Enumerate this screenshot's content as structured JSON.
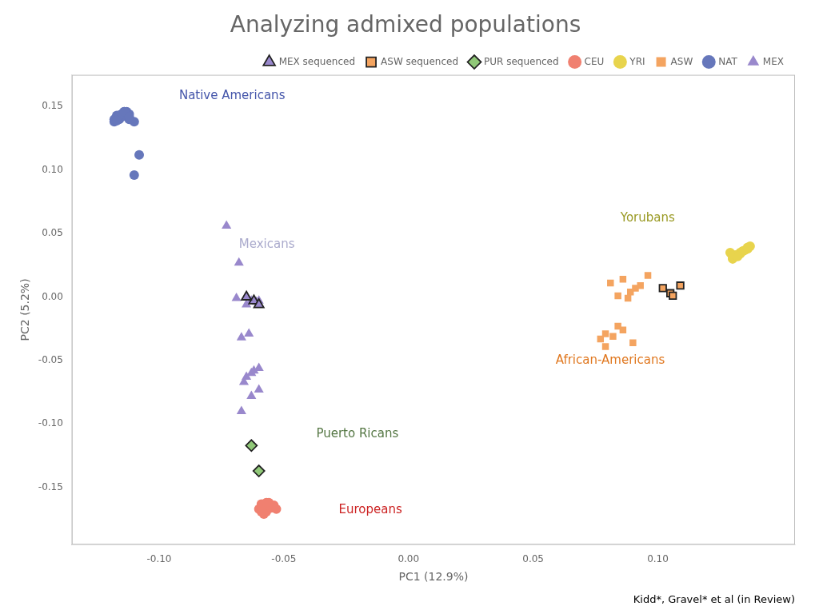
{
  "chart_data": {
    "type": "scatter",
    "title": "Analyzing admixed populations",
    "subtitle": "Kidd*, Gravel* et al (in Review)",
    "xlabel": "PC1 (12.9%)",
    "ylabel": "PC2 (5.2%)",
    "xlim": [
      -0.135,
      0.155
    ],
    "ylim": [
      -0.195,
      0.175
    ],
    "xticks": [
      {
        "value": -0.1,
        "label": "-0.10"
      },
      -0.05,
      {
        "value": 0,
        "label": "0.00"
      },
      0.05,
      {
        "value": 0.1,
        "label": "0.10"
      }
    ],
    "yticks": [
      -0.15,
      {
        "value": -0.1,
        "label": "-0.10"
      },
      -0.05,
      {
        "value": 0,
        "label": "0.00"
      },
      0.05,
      {
        "value": 0.1,
        "label": "0.10"
      },
      0.15
    ],
    "grid": false,
    "legend": "top",
    "series": [
      {
        "name": "CEU",
        "color": "#F08070",
        "marker": "circle",
        "x": [
          -0.057,
          -0.059,
          -0.055,
          -0.058,
          -0.056,
          -0.06,
          -0.054,
          -0.057,
          -0.059,
          -0.055,
          -0.058,
          -0.056,
          -0.053,
          -0.057,
          -0.059
        ],
        "values": [
          -0.163,
          -0.168,
          -0.165,
          -0.17,
          -0.162,
          -0.167,
          -0.164,
          -0.169,
          -0.163,
          -0.166,
          -0.171,
          -0.164,
          -0.167,
          -0.162,
          -0.169
        ]
      },
      {
        "name": "MEX sequenced",
        "color": "#9988CC",
        "marker": "triangle_outlined",
        "x": [
          -0.062,
          -0.065,
          -0.06
        ],
        "values": [
          -0.003,
          0.0,
          -0.006
        ]
      },
      {
        "name": "YRI",
        "color": "#E8D44D",
        "marker": "circle",
        "x": [
          0.132,
          0.136,
          0.13,
          0.134,
          0.133,
          0.137,
          0.131,
          0.135,
          0.133,
          0.13,
          0.134,
          0.131,
          0.136,
          0.132,
          0.129
        ],
        "values": [
          0.033,
          0.038,
          0.03,
          0.036,
          0.034,
          0.04,
          0.032,
          0.037,
          0.035,
          0.031,
          0.036,
          0.033,
          0.039,
          0.032,
          0.035
        ]
      },
      {
        "name": "ASW",
        "color": "#F4A460",
        "marker": "square",
        "x": [
          0.077,
          0.082,
          0.086,
          0.089,
          0.093,
          0.079,
          0.084,
          0.088,
          0.091,
          0.081,
          0.086,
          0.096,
          0.09,
          0.084,
          0.079
        ],
        "values": [
          -0.033,
          -0.031,
          -0.026,
          0.004,
          0.009,
          -0.029,
          -0.023,
          -0.001,
          0.007,
          0.011,
          0.014,
          0.017,
          -0.036,
          0.001,
          -0.039
        ]
      },
      {
        "name": "NAT",
        "color": "#6677BB",
        "marker": "circle",
        "x": [
          -0.117,
          -0.113,
          -0.116,
          -0.112,
          -0.115,
          -0.118,
          -0.114,
          -0.116,
          -0.113,
          -0.117,
          -0.115,
          -0.112,
          -0.116,
          -0.114,
          -0.118,
          -0.113,
          -0.11,
          -0.115,
          -0.112,
          -0.116,
          -0.114,
          -0.117,
          -0.112,
          -0.11,
          -0.108
        ],
        "values": [
          0.143,
          0.146,
          0.14,
          0.144,
          0.142,
          0.138,
          0.145,
          0.141,
          0.143,
          0.139,
          0.144,
          0.141,
          0.143,
          0.146,
          0.14,
          0.142,
          0.138,
          0.144,
          0.14,
          0.143,
          0.146,
          0.139,
          0.142,
          0.096,
          0.112
        ]
      },
      {
        "name": "ASW sequenced",
        "color": "#F4A460",
        "marker": "square_outlined",
        "x": [
          0.102,
          0.105,
          0.109,
          0.106
        ],
        "values": [
          0.007,
          0.003,
          0.009,
          0.001
        ]
      },
      {
        "name": "MEX",
        "color": "#9988CC",
        "marker": "triangle",
        "x": [
          -0.073,
          -0.068,
          -0.063,
          -0.06,
          -0.064,
          -0.067,
          -0.062,
          -0.065,
          -0.06,
          -0.063,
          -0.067,
          -0.061,
          -0.065,
          -0.069,
          -0.06,
          -0.063,
          -0.066
        ],
        "values": [
          0.056,
          0.027,
          -0.003,
          -0.003,
          -0.029,
          -0.032,
          -0.058,
          -0.063,
          -0.073,
          -0.078,
          -0.09,
          -0.004,
          -0.006,
          -0.001,
          -0.056,
          -0.06,
          -0.067
        ]
      },
      {
        "name": "PUR sequenced",
        "color": "#90C878",
        "marker": "diamond_outlined",
        "x": [
          -0.063,
          -0.06
        ],
        "values": [
          -0.117,
          -0.137
        ]
      }
    ],
    "annotations": [
      {
        "text": "Native Americans",
        "x": -0.092,
        "y": 0.158,
        "color": "#4455AA"
      },
      {
        "text": "Mexicans",
        "x": -0.068,
        "y": 0.041,
        "color": "#AAAACC"
      },
      {
        "text": "Yorubans",
        "x": 0.085,
        "y": 0.062,
        "color": "#999922"
      },
      {
        "text": "African-Americans",
        "x": 0.059,
        "y": -0.05,
        "color": "#E07820"
      },
      {
        "text": "Puerto Ricans",
        "x": -0.037,
        "y": -0.108,
        "color": "#557744"
      },
      {
        "text": "Europeans",
        "x": -0.028,
        "y": -0.168,
        "color": "#CC2222"
      }
    ]
  }
}
